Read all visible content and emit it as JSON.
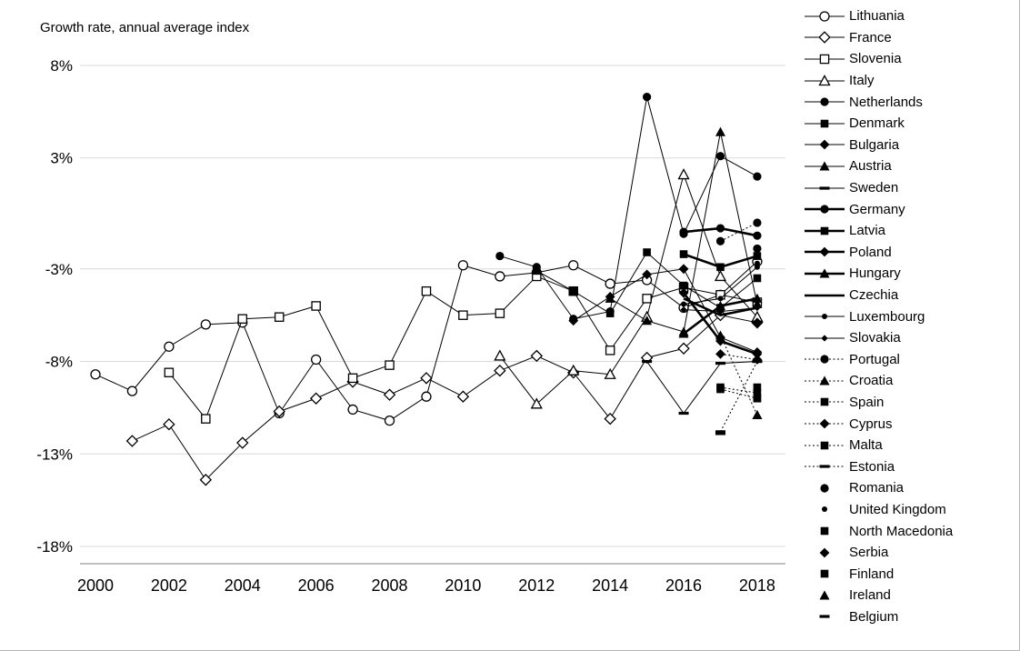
{
  "chart_data": {
    "type": "line",
    "title": "Growth rate, annual average index",
    "xlabel": "",
    "ylabel": "",
    "x_ticks": [
      2000,
      2002,
      2004,
      2006,
      2008,
      2010,
      2012,
      2014,
      2016,
      2018
    ],
    "xlim": [
      2000,
      2018
    ],
    "ylim": [
      -18,
      8
    ],
    "grid": true,
    "legend_position": "right",
    "y_ticks": [
      {
        "value": 8,
        "label": "8%"
      },
      {
        "value": 3,
        "label": "3%"
      },
      {
        "value": -3,
        "label": "-3%"
      },
      {
        "value": -8,
        "label": "-8%"
      },
      {
        "value": -13,
        "label": "-13%"
      },
      {
        "value": -18,
        "label": "-18%"
      }
    ],
    "line_color": "#000000",
    "grid_color": "#d9d9d9",
    "axis_color": "#7f7f7f",
    "series": [
      {
        "name": "Lithuania",
        "marker": "circle-open",
        "line": "solid",
        "width": 1,
        "points": [
          [
            2000,
            -8.7
          ],
          [
            2001,
            -9.6
          ],
          [
            2002,
            -7.2
          ],
          [
            2003,
            -6.0
          ],
          [
            2004,
            -5.9
          ],
          [
            2005,
            -10.8
          ],
          [
            2006,
            -7.9
          ],
          [
            2007,
            -10.6
          ],
          [
            2008,
            -11.2
          ],
          [
            2009,
            -9.9
          ],
          [
            2010,
            -2.8
          ],
          [
            2011,
            -3.4
          ],
          [
            2012,
            -3.2
          ],
          [
            2013,
            -2.8
          ],
          [
            2014,
            -3.8
          ],
          [
            2015,
            -3.6
          ],
          [
            2016,
            -5.1
          ],
          [
            2017,
            -4.4
          ],
          [
            2018,
            -2.6
          ]
        ]
      },
      {
        "name": "France",
        "marker": "diamond-open",
        "line": "solid",
        "width": 1,
        "points": [
          [
            2001,
            -12.3
          ],
          [
            2002,
            -11.4
          ],
          [
            2003,
            -14.4
          ],
          [
            2004,
            -12.4
          ],
          [
            2005,
            -10.7
          ],
          [
            2006,
            -10.0
          ],
          [
            2007,
            -9.1
          ],
          [
            2008,
            -9.8
          ],
          [
            2009,
            -8.9
          ],
          [
            2010,
            -9.9
          ],
          [
            2011,
            -8.5
          ],
          [
            2012,
            -7.7
          ],
          [
            2013,
            -8.6
          ],
          [
            2014,
            -11.1
          ],
          [
            2015,
            -7.8
          ],
          [
            2016,
            -7.3
          ],
          [
            2017,
            -5.5
          ],
          [
            2018,
            -5.9
          ]
        ]
      },
      {
        "name": "Slovenia",
        "marker": "square-open",
        "line": "solid",
        "width": 1,
        "points": [
          [
            2002,
            -8.6
          ],
          [
            2003,
            -11.1
          ],
          [
            2004,
            -5.7
          ],
          [
            2005,
            -5.6
          ],
          [
            2006,
            -5.0
          ],
          [
            2007,
            -8.9
          ],
          [
            2008,
            -8.2
          ],
          [
            2009,
            -4.2
          ],
          [
            2010,
            -5.5
          ],
          [
            2011,
            -5.4
          ],
          [
            2012,
            -3.4
          ],
          [
            2013,
            -4.2
          ],
          [
            2014,
            -7.4
          ],
          [
            2015,
            -4.6
          ],
          [
            2016,
            -4.0
          ],
          [
            2017,
            -4.4
          ],
          [
            2018,
            -4.8
          ]
        ]
      },
      {
        "name": "Italy",
        "marker": "triangle-open",
        "line": "solid",
        "width": 1,
        "points": [
          [
            2011,
            -7.7
          ],
          [
            2012,
            -10.3
          ],
          [
            2013,
            -8.5
          ],
          [
            2014,
            -8.7
          ],
          [
            2015,
            -5.6
          ],
          [
            2016,
            2.1
          ],
          [
            2017,
            -3.4
          ],
          [
            2018,
            -5.6
          ]
        ]
      },
      {
        "name": "Netherlands",
        "marker": "circle",
        "line": "solid",
        "width": 1,
        "points": [
          [
            2011,
            -2.3
          ],
          [
            2012,
            -2.9
          ],
          [
            2013,
            -5.7
          ],
          [
            2014,
            -5.3
          ],
          [
            2015,
            6.3
          ],
          [
            2016,
            -1.1
          ],
          [
            2017,
            3.1
          ],
          [
            2018,
            2.0
          ]
        ]
      },
      {
        "name": "Denmark",
        "marker": "square",
        "line": "solid",
        "width": 1,
        "points": [
          [
            2012,
            -3.1
          ],
          [
            2013,
            -4.2
          ],
          [
            2014,
            -5.4
          ],
          [
            2015,
            -2.1
          ],
          [
            2016,
            -3.9
          ],
          [
            2017,
            -5.1
          ],
          [
            2018,
            -3.5
          ]
        ]
      },
      {
        "name": "Bulgaria",
        "marker": "diamond",
        "line": "solid",
        "width": 1,
        "points": [
          [
            2013,
            -5.8
          ],
          [
            2014,
            -4.5
          ],
          [
            2015,
            -3.3
          ],
          [
            2016,
            -3.0
          ],
          [
            2017,
            -6.7
          ],
          [
            2018,
            -7.5
          ]
        ]
      },
      {
        "name": "Austria",
        "marker": "triangle",
        "line": "solid",
        "width": 1,
        "points": [
          [
            2014,
            -4.6
          ],
          [
            2015,
            -5.8
          ],
          [
            2016,
            -6.4
          ],
          [
            2017,
            4.4
          ],
          [
            2018,
            -4.9
          ]
        ]
      },
      {
        "name": "Sweden",
        "marker": "dash",
        "line": "solid",
        "width": 1,
        "points": [
          [
            2015,
            -8.0
          ],
          [
            2016,
            -10.8
          ],
          [
            2017,
            -8.1
          ],
          [
            2018,
            -8.0
          ]
        ]
      },
      {
        "name": "Germany",
        "marker": "circle",
        "line": "solid",
        "width": 2.6,
        "points": [
          [
            2016,
            -1.0
          ],
          [
            2017,
            -0.8
          ],
          [
            2018,
            -1.2
          ]
        ]
      },
      {
        "name": "Latvia",
        "marker": "square",
        "line": "solid",
        "width": 2.6,
        "points": [
          [
            2016,
            -2.2
          ],
          [
            2017,
            -2.9
          ],
          [
            2018,
            -2.3
          ]
        ]
      },
      {
        "name": "Poland",
        "marker": "diamond",
        "line": "solid",
        "width": 2.6,
        "points": [
          [
            2016,
            -4.3
          ],
          [
            2017,
            -6.9
          ],
          [
            2018,
            -7.6
          ]
        ]
      },
      {
        "name": "Hungary",
        "marker": "triangle",
        "line": "solid",
        "width": 2.6,
        "points": [
          [
            2016,
            -6.5
          ],
          [
            2017,
            -5.0
          ],
          [
            2018,
            -4.6
          ]
        ]
      },
      {
        "name": "Czechia",
        "marker": "none",
        "line": "solid",
        "width": 2.6,
        "points": [
          [
            2016,
            -4.6
          ],
          [
            2017,
            -5.5
          ],
          [
            2018,
            -5.1
          ]
        ]
      },
      {
        "name": "Luxembourg",
        "marker": "circle-small",
        "line": "solid",
        "width": 1,
        "points": [
          [
            2016,
            -4.9
          ],
          [
            2017,
            -4.6
          ],
          [
            2018,
            -2.9
          ]
        ]
      },
      {
        "name": "Slovakia",
        "marker": "diamond-small",
        "line": "solid",
        "width": 1,
        "points": [
          [
            2016,
            -5.2
          ],
          [
            2017,
            -5.3
          ],
          [
            2018,
            -5.1
          ]
        ]
      },
      {
        "name": "Portugal",
        "marker": "circle",
        "line": "dotted",
        "width": 1,
        "points": [
          [
            2017,
            -1.5
          ],
          [
            2018,
            -0.5
          ]
        ]
      },
      {
        "name": "Croatia",
        "marker": "triangle",
        "line": "dotted",
        "width": 1,
        "points": [
          [
            2017,
            -6.6
          ],
          [
            2018,
            -10.9
          ]
        ]
      },
      {
        "name": "Spain",
        "marker": "square",
        "line": "dotted",
        "width": 1,
        "points": [
          [
            2017,
            -9.4
          ],
          [
            2018,
            -9.7
          ]
        ]
      },
      {
        "name": "Cyprus",
        "marker": "diamond",
        "line": "dotted",
        "width": 1,
        "points": [
          [
            2017,
            -7.6
          ],
          [
            2018,
            -7.9
          ]
        ]
      },
      {
        "name": "Malta",
        "marker": "square",
        "line": "dotted",
        "width": 1,
        "points": [
          [
            2017,
            -9.5
          ],
          [
            2018,
            -10.0
          ]
        ]
      },
      {
        "name": "Estonia",
        "marker": "dash",
        "line": "dotted",
        "width": 1,
        "points": [
          [
            2017,
            -11.8
          ],
          [
            2018,
            -8.0
          ]
        ]
      },
      {
        "name": "Romania",
        "marker": "circle",
        "line": "none",
        "width": 0,
        "points": [
          [
            2018,
            -1.9
          ]
        ]
      },
      {
        "name": "United Kingdom",
        "marker": "circle-small",
        "line": "none",
        "width": 0,
        "points": [
          [
            2018,
            -2.7
          ]
        ]
      },
      {
        "name": "North Macedonia",
        "marker": "square",
        "line": "none",
        "width": 0,
        "points": [
          [
            2018,
            -9.4
          ]
        ]
      },
      {
        "name": "Serbia",
        "marker": "diamond",
        "line": "none",
        "width": 0,
        "points": [
          [
            2018,
            -5.9
          ]
        ]
      },
      {
        "name": "Finland",
        "marker": "square",
        "line": "none",
        "width": 0,
        "points": [
          [
            2018,
            -10.0
          ]
        ]
      },
      {
        "name": "Ireland",
        "marker": "triangle",
        "line": "none",
        "width": 0,
        "points": [
          [
            2018,
            -10.9
          ]
        ]
      },
      {
        "name": "Belgium",
        "marker": "dash",
        "line": "none",
        "width": 0,
        "points": [
          [
            2017,
            -11.9
          ]
        ]
      }
    ]
  }
}
